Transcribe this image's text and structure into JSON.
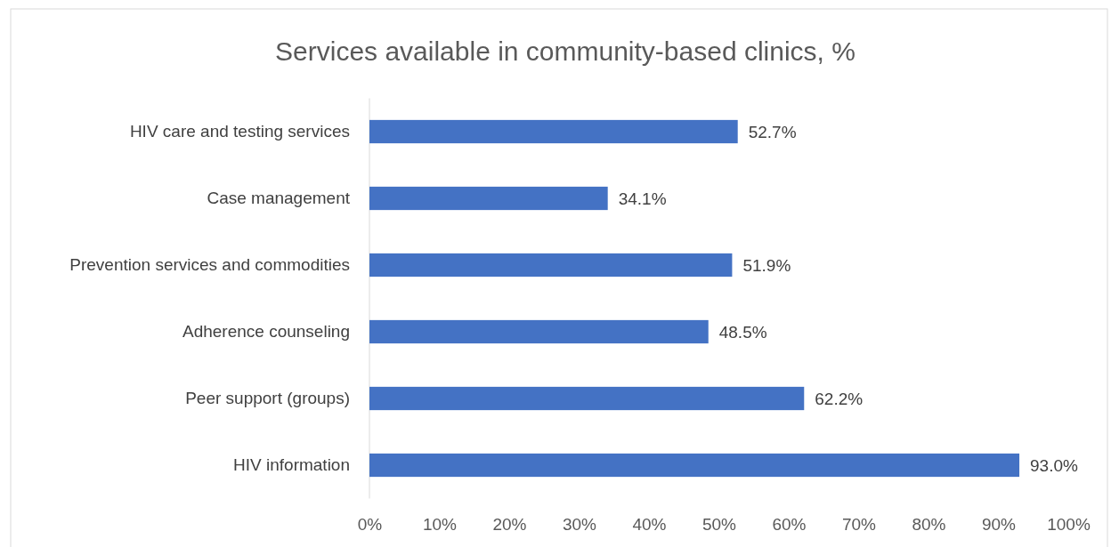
{
  "chart_data": {
    "type": "bar",
    "orientation": "horizontal",
    "title": "Services available in community-based clinics, %",
    "categories": [
      "HIV care and testing services",
      "Case management",
      "Prevention services and commodities",
      "Adherence counseling",
      "Peer support (groups)",
      "HIV information"
    ],
    "values": [
      52.7,
      34.1,
      51.9,
      48.5,
      62.2,
      93.0
    ],
    "value_labels": [
      "52.7%",
      "34.1%",
      "51.9%",
      "48.5%",
      "62.2%",
      "93.0%"
    ],
    "color": "#4472c4",
    "xlim": [
      0,
      100
    ],
    "xticks": [
      {
        "value": 0,
        "label": "0%"
      },
      {
        "value": 10,
        "label": "10%"
      },
      {
        "value": 20,
        "label": "20%"
      },
      {
        "value": 30,
        "label": "30%"
      },
      {
        "value": 40,
        "label": "40%"
      },
      {
        "value": 50,
        "label": "50%"
      },
      {
        "value": 60,
        "label": "60%"
      },
      {
        "value": 70,
        "label": "70%"
      },
      {
        "value": 80,
        "label": "80%"
      },
      {
        "value": 90,
        "label": "90%"
      },
      {
        "value": 100,
        "label": "100%"
      }
    ],
    "grid": false
  }
}
